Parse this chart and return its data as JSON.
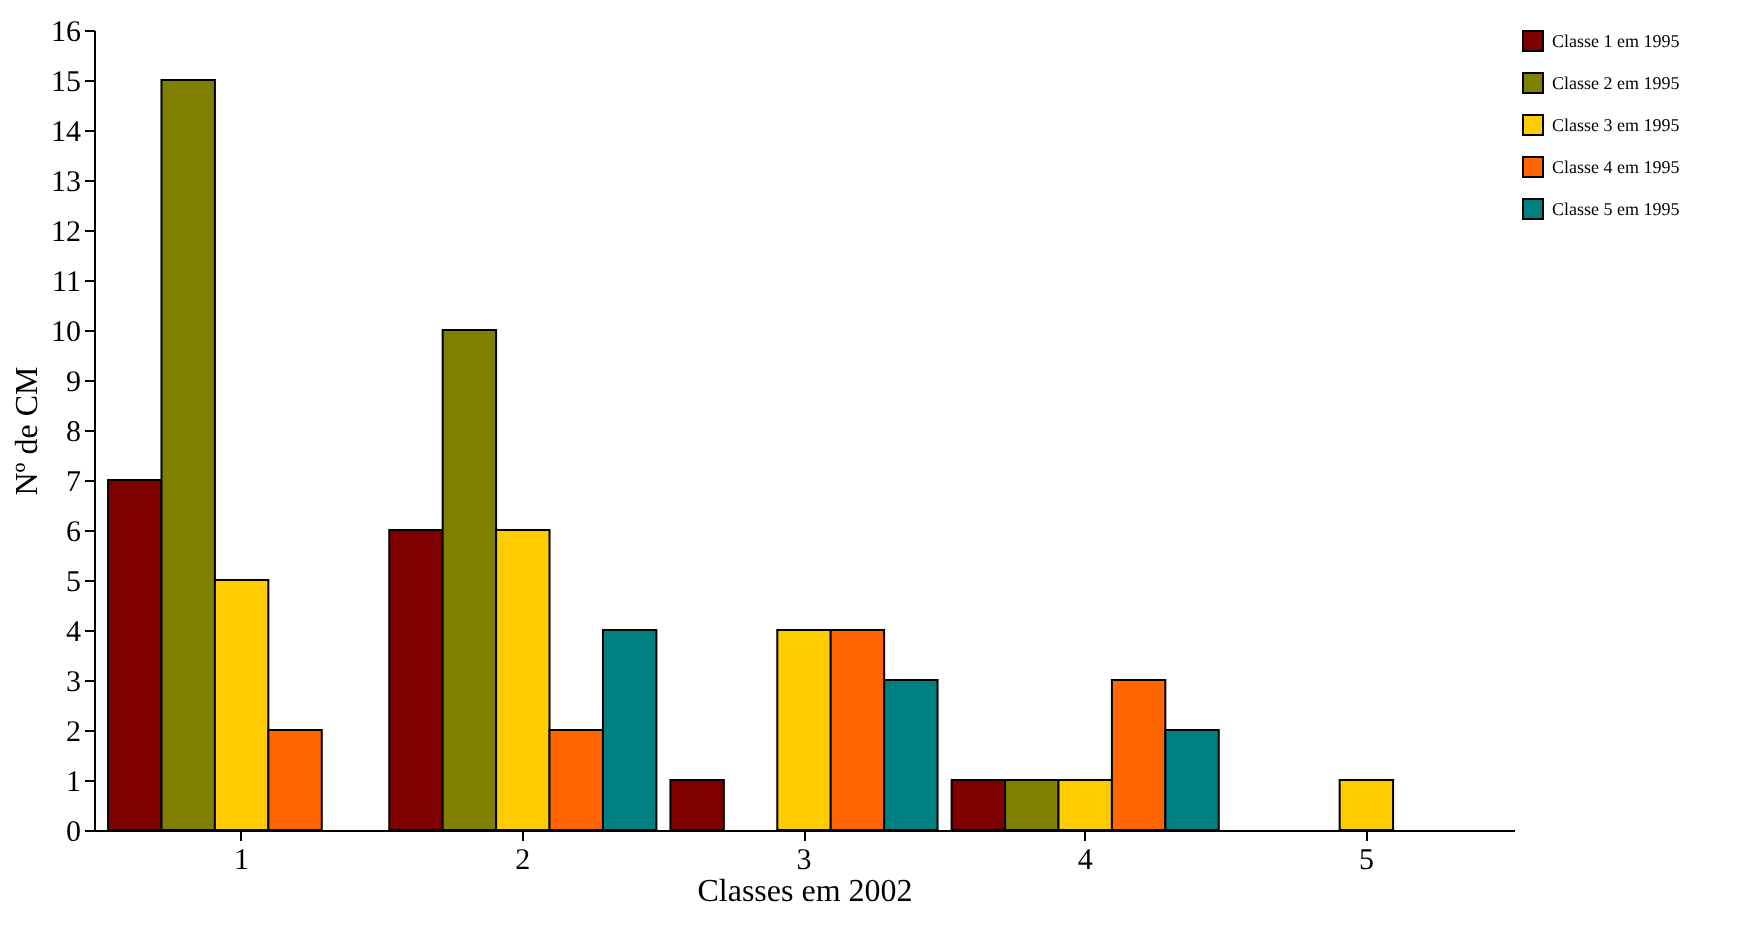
{
  "chart_data": {
    "type": "bar",
    "xlabel": "Classes em 2002",
    "ylabel": "Nº de CM",
    "categories": [
      "1",
      "2",
      "3",
      "4",
      "5"
    ],
    "series": [
      {
        "name": "Classe 1 em 1995",
        "color": "#800000",
        "values": [
          7,
          6,
          1,
          1,
          null
        ]
      },
      {
        "name": "Classe 2 em 1995",
        "color": "#808000",
        "values": [
          15,
          10,
          null,
          1,
          null
        ]
      },
      {
        "name": "Classe 3 em 1995",
        "color": "#ffcc00",
        "values": [
          5,
          6,
          4,
          1,
          1
        ]
      },
      {
        "name": "Classe 4 em 1995",
        "color": "#ff6600",
        "values": [
          2,
          2,
          4,
          3,
          null
        ]
      },
      {
        "name": "Classe 5 em 1995",
        "color": "#008080",
        "values": [
          null,
          4,
          3,
          2,
          null
        ]
      }
    ],
    "ylim": [
      0,
      16
    ],
    "yticks": [
      0,
      1,
      2,
      3,
      4,
      5,
      6,
      7,
      8,
      9,
      10,
      11,
      12,
      13,
      14,
      15,
      16
    ],
    "grid": false,
    "legend": "right"
  }
}
